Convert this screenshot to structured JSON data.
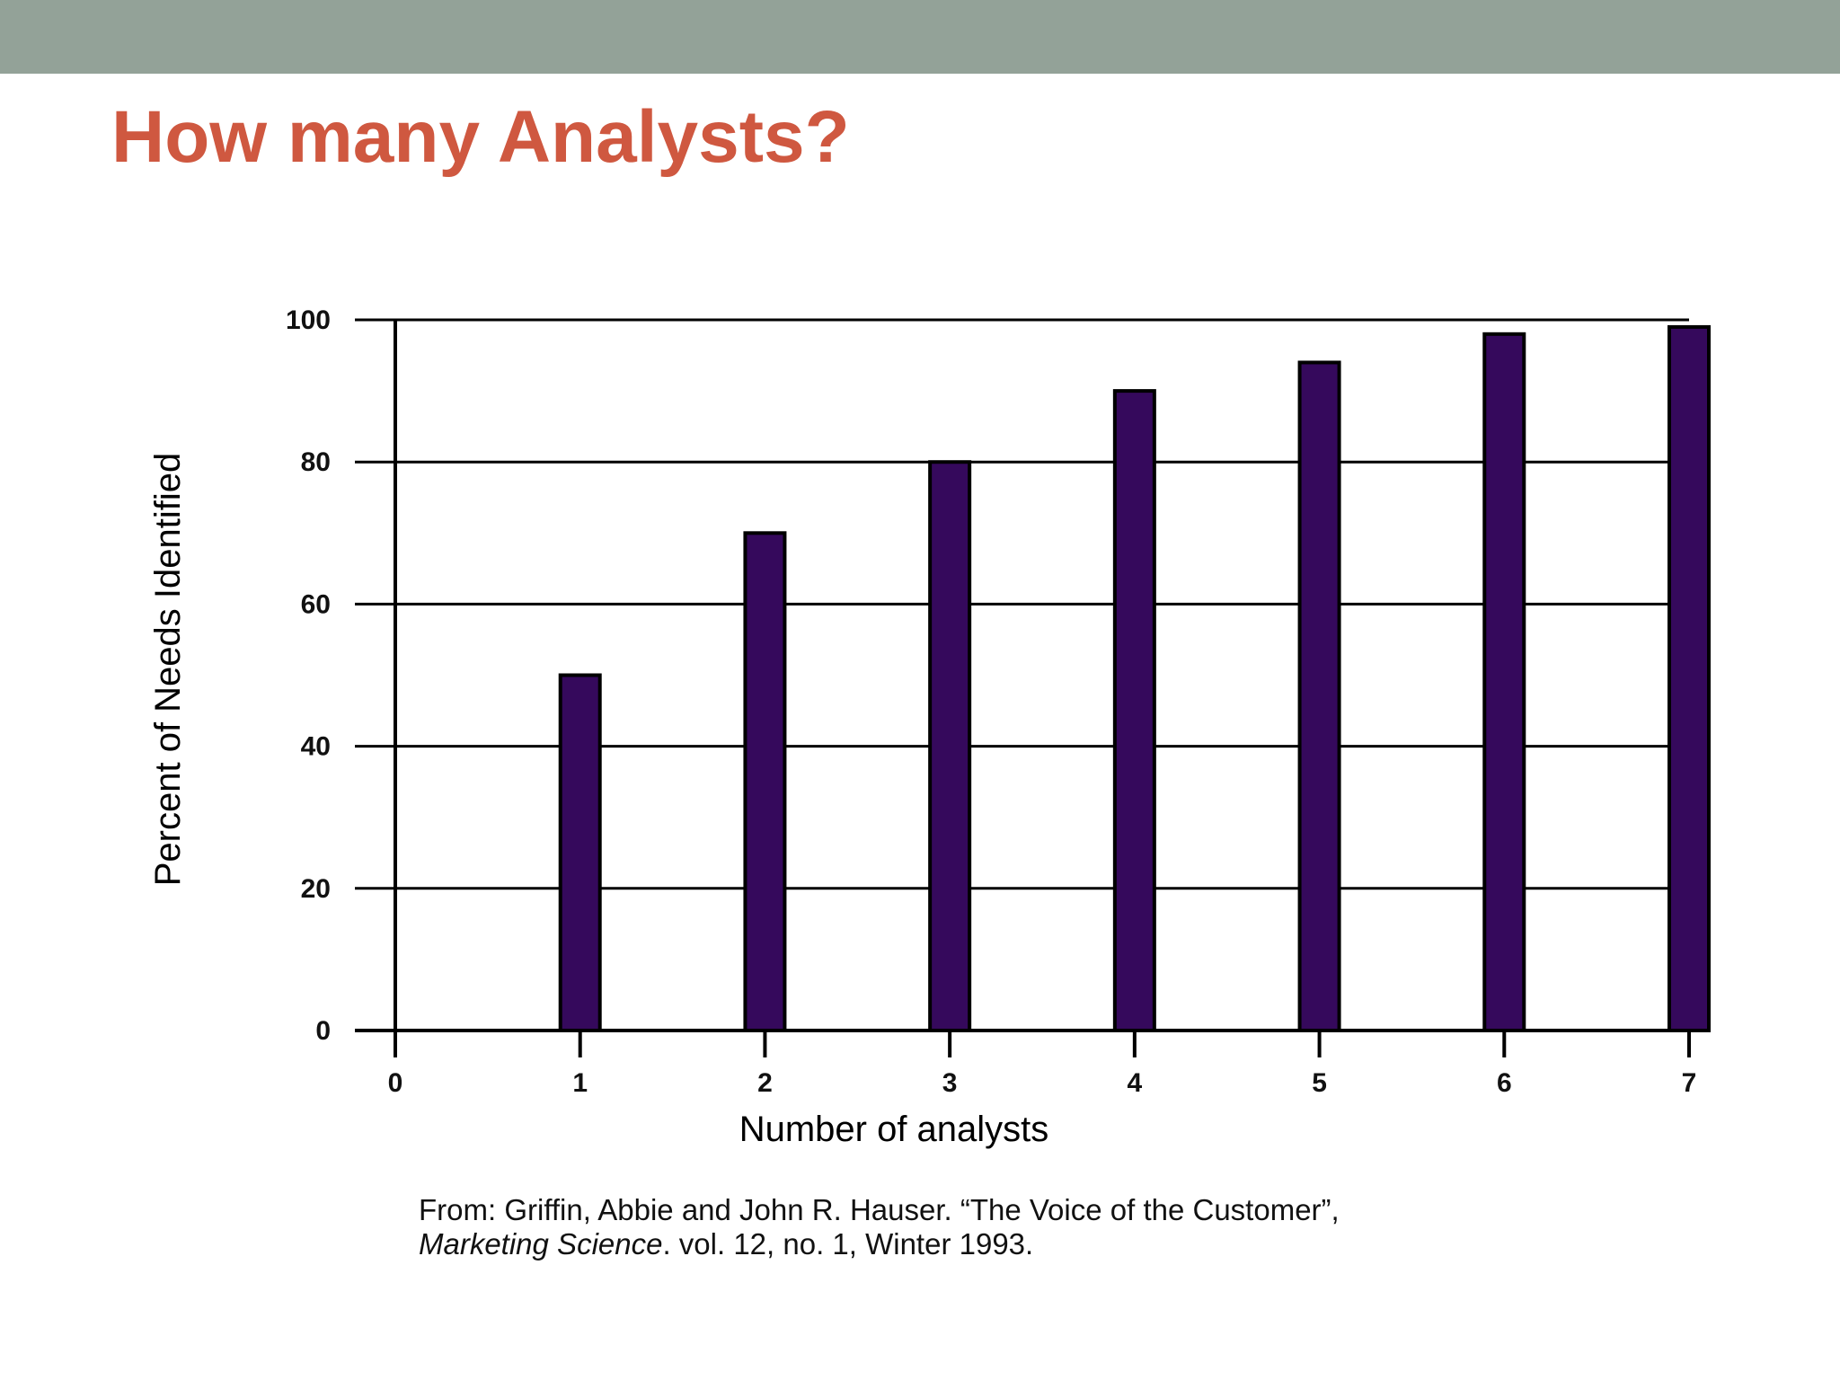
{
  "colors": {
    "top_bar": "#93a298",
    "title": "#cf5840",
    "bar_fill": "#35095c",
    "bar_stroke": "#000000"
  },
  "slide": {
    "title": "How many Analysts?"
  },
  "chart_data": {
    "type": "bar",
    "xlabel": "Number of analysts",
    "ylabel": "Percent of Needs Identified",
    "x_ticks": [
      "0",
      "1",
      "2",
      "3",
      "4",
      "5",
      "6",
      "7"
    ],
    "y_ticks": [
      "0",
      "20",
      "40",
      "60",
      "80",
      "100"
    ],
    "xlim": [
      0,
      7
    ],
    "ylim": [
      0,
      100
    ],
    "grid": true,
    "x": [
      1,
      2,
      3,
      4,
      5,
      6,
      7
    ],
    "values": [
      50,
      70,
      80,
      90,
      94,
      98,
      99
    ]
  },
  "citation": {
    "line1": "From: Griffin, Abbie and John R. Hauser. “The Voice of the Customer”,",
    "journal": "Marketing Science",
    "line2_rest": ". vol. 12, no. 1, Winter 1993."
  }
}
